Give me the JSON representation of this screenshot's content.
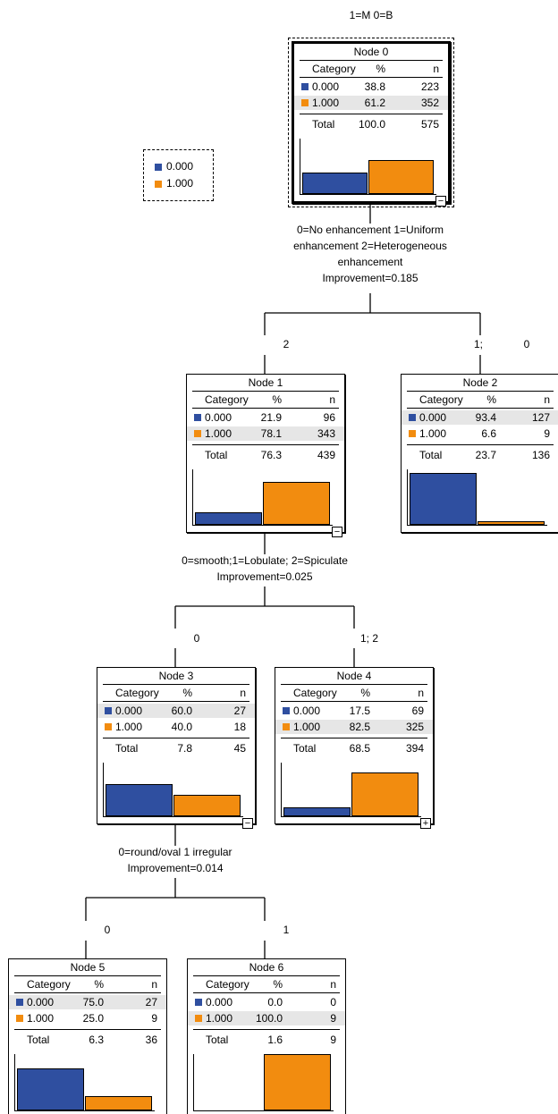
{
  "header": {
    "title": "1=M 0=B"
  },
  "colors": {
    "class_0": "#2f4fa0",
    "class_1": "#f28c0f"
  },
  "legend": {
    "items": [
      {
        "label": "0.000"
      },
      {
        "label": "1.000"
      }
    ]
  },
  "table_headers": {
    "category": "Category",
    "pct": "%",
    "n": "n",
    "total": "Total"
  },
  "nodes": {
    "n0": {
      "title": "Node 0",
      "rows": [
        {
          "cat": "0.000",
          "pct": "38.8",
          "n": "223"
        },
        {
          "cat": "1.000",
          "pct": "61.2",
          "n": "352"
        }
      ],
      "total": {
        "pct": "100.0",
        "n": "575"
      },
      "toggle": "−"
    },
    "n1": {
      "title": "Node 1",
      "rows": [
        {
          "cat": "0.000",
          "pct": "21.9",
          "n": "96"
        },
        {
          "cat": "1.000",
          "pct": "78.1",
          "n": "343"
        }
      ],
      "total": {
        "pct": "76.3",
        "n": "439"
      },
      "toggle": "−"
    },
    "n2": {
      "title": "Node 2",
      "rows": [
        {
          "cat": "0.000",
          "pct": "93.4",
          "n": "127"
        },
        {
          "cat": "1.000",
          "pct": "6.6",
          "n": "9"
        }
      ],
      "total": {
        "pct": "23.7",
        "n": "136"
      }
    },
    "n3": {
      "title": "Node 3",
      "rows": [
        {
          "cat": "0.000",
          "pct": "60.0",
          "n": "27"
        },
        {
          "cat": "1.000",
          "pct": "40.0",
          "n": "18"
        }
      ],
      "total": {
        "pct": "7.8",
        "n": "45"
      },
      "toggle": "−"
    },
    "n4": {
      "title": "Node 4",
      "rows": [
        {
          "cat": "0.000",
          "pct": "17.5",
          "n": "69"
        },
        {
          "cat": "1.000",
          "pct": "82.5",
          "n": "325"
        }
      ],
      "total": {
        "pct": "68.5",
        "n": "394"
      },
      "toggle": "+"
    },
    "n5": {
      "title": "Node 5",
      "rows": [
        {
          "cat": "0.000",
          "pct": "75.0",
          "n": "27"
        },
        {
          "cat": "1.000",
          "pct": "25.0",
          "n": "9"
        }
      ],
      "total": {
        "pct": "6.3",
        "n": "36"
      }
    },
    "n6": {
      "title": "Node 6",
      "rows": [
        {
          "cat": "0.000",
          "pct": "0.0",
          "n": "0"
        },
        {
          "cat": "1.000",
          "pct": "100.0",
          "n": "9"
        }
      ],
      "total": {
        "pct": "1.6",
        "n": "9"
      }
    }
  },
  "splits": {
    "s0": {
      "line1": "0=No enhancement 1=Uniform",
      "line2": "enhancement 2=Heterogeneous",
      "line3": "enhancement",
      "improvement": "Improvement=0.185"
    },
    "s1": {
      "line1": "0=smooth;1=Lobulate; 2=Spiculate",
      "improvement": "Improvement=0.025"
    },
    "s3": {
      "line1": "0=round/oval 1 irregular",
      "improvement": "Improvement=0.014"
    }
  },
  "branches": {
    "b1": "2",
    "b2a": "1;",
    "b2b": "0",
    "b3": "0",
    "b4": "1; 2",
    "b5": "0",
    "b6": "1"
  }
}
